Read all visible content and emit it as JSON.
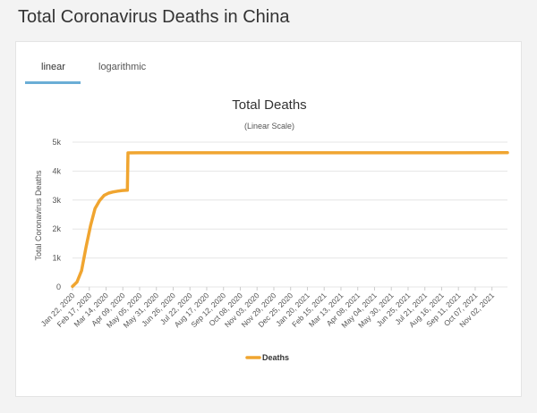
{
  "page": {
    "title": "Total Coronavirus Deaths in China"
  },
  "tabs": [
    {
      "label": "linear",
      "active": true
    },
    {
      "label": "logarithmic",
      "active": false
    }
  ],
  "chart_data": {
    "type": "line",
    "title": "Total Deaths",
    "subtitle": "(Linear Scale)",
    "ylabel": "Total Coronavirus Deaths",
    "xlabel": "",
    "ylim": [
      0,
      5000
    ],
    "yticks": [
      0,
      1000,
      2000,
      3000,
      4000,
      5000
    ],
    "ytick_labels": [
      "0",
      "1k",
      "2k",
      "3k",
      "4k",
      "5k"
    ],
    "x_categories": [
      "Jan 22, 2020",
      "Feb 17, 2020",
      "Mar 14, 2020",
      "Apr 09, 2020",
      "May 05, 2020",
      "May 31, 2020",
      "Jun 26, 2020",
      "Jul 22, 2020",
      "Aug 17, 2020",
      "Sep 12, 2020",
      "Oct 08, 2020",
      "Nov 03, 2020",
      "Nov 29, 2020",
      "Dec 25, 2020",
      "Jan 20, 2021",
      "Feb 15, 2021",
      "Mar 13, 2021",
      "Apr 08, 2021",
      "May 04, 2021",
      "May 30, 2021",
      "Jun 25, 2021",
      "Jul 21, 2021",
      "Aug 16, 2021",
      "Sep 11, 2021",
      "Oct 07, 2021",
      "Nov 02, 2021"
    ],
    "x_end": "Nov 26, 2021",
    "grid": true,
    "legend_position": "bottom",
    "color": "#f0a530",
    "series": [
      {
        "name": "Deaths",
        "points": [
          [
            "Jan 22, 2020",
            17
          ],
          [
            "Jan 29, 2020",
            170
          ],
          [
            "Feb 05, 2020",
            560
          ],
          [
            "Feb 12, 2020",
            1370
          ],
          [
            "Feb 19, 2020",
            2120
          ],
          [
            "Feb 26, 2020",
            2710
          ],
          [
            "Mar 04, 2020",
            2980
          ],
          [
            "Mar 11, 2020",
            3160
          ],
          [
            "Mar 18, 2020",
            3240
          ],
          [
            "Mar 25, 2020",
            3280
          ],
          [
            "Apr 01, 2020",
            3310
          ],
          [
            "Apr 08, 2020",
            3330
          ],
          [
            "Apr 16, 2020",
            3340
          ],
          [
            "Apr 17, 2020",
            4630
          ],
          [
            "May 05, 2020",
            4633
          ],
          [
            "Dec 25, 2020",
            4634
          ],
          [
            "Nov 26, 2021",
            4636
          ]
        ]
      }
    ]
  }
}
